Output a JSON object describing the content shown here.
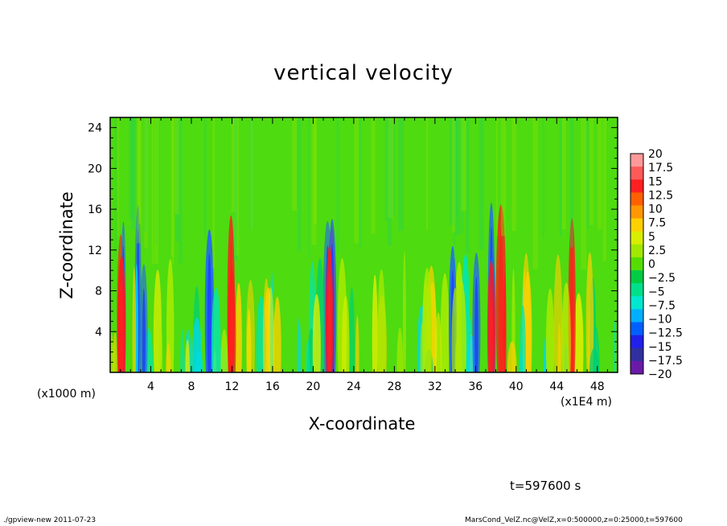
{
  "chart_data": {
    "type": "heatmap",
    "title": "vertical velocity",
    "xlabel": "X-coordinate",
    "ylabel": "Z-coordinate",
    "x_unit_label": "(x1E4 m)",
    "y_unit_label": "(x1000 m)",
    "xlim": [
      0,
      50
    ],
    "ylim": [
      0,
      25
    ],
    "x_ticks": [
      4,
      8,
      12,
      16,
      20,
      24,
      28,
      32,
      36,
      40,
      44,
      48
    ],
    "y_ticks": [
      4,
      8,
      12,
      16,
      20,
      24
    ],
    "colorbar": {
      "levels": [
        20,
        17.5,
        15,
        12.5,
        10,
        7.5,
        5,
        2.5,
        0,
        -2.5,
        -5,
        -7.5,
        -10,
        -12.5,
        -15,
        -17.5,
        -20
      ],
      "labels": [
        "20",
        "17.5",
        "15",
        "12.5",
        "10",
        "7.5",
        "5",
        "2.5",
        "0",
        "−2.5",
        "−5",
        "−7.5",
        "−10",
        "−12.5",
        "−15",
        "−17.5",
        "−20"
      ],
      "colors": [
        "#ff9999",
        "#ff5a5a",
        "#ff2020",
        "#ff6000",
        "#ff9800",
        "#ffd000",
        "#d8ee00",
        "#a0e800",
        "#55dd00",
        "#00cc44",
        "#00e08a",
        "#00e8d0",
        "#00b0ff",
        "#0060ff",
        "#2020e8",
        "#3030a0",
        "#6a1aa8"
      ]
    },
    "grid": false
  },
  "annotations": {
    "time": "t=597600 s",
    "footer_left": "./gpview-new   2011-07-23",
    "footer_right": "MarsCond_VelZ.nc@VelZ,x=0:500000,z=0:25000,t=597600"
  }
}
